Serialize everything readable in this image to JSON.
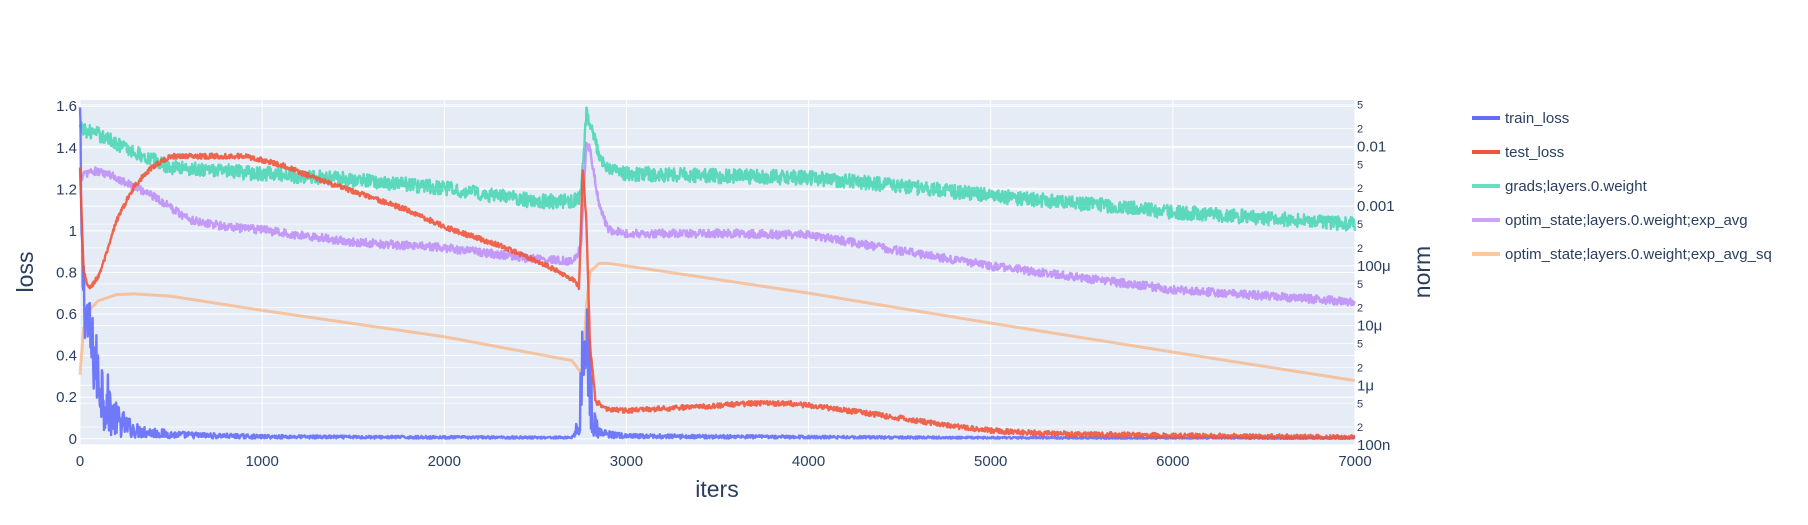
{
  "chart_data": {
    "type": "line",
    "xlabel": "iters",
    "ylabel_left": "loss",
    "ylabel_right": "norm",
    "x_ticks": [
      0,
      1000,
      2000,
      3000,
      4000,
      5000,
      6000,
      7000
    ],
    "x_tick_labels": [
      "0",
      "1000",
      "2000",
      "3000",
      "4000",
      "5000",
      "6000",
      "7000"
    ],
    "xlim": [
      0,
      7000
    ],
    "y_left_ticks": [
      0,
      0.2,
      0.4,
      0.6,
      0.8,
      1,
      1.2,
      1.4,
      1.6
    ],
    "y_left_tick_labels": [
      "0",
      "0.2",
      "0.4",
      "0.6",
      "0.8",
      "1",
      "1.2",
      "1.4",
      "1.6"
    ],
    "ylim_left": [
      -0.03,
      1.63
    ],
    "y_right_scale": "log",
    "y_right_major_labels": [
      {
        "value": 1e-07,
        "label": "100n"
      },
      {
        "value": 1e-06,
        "label": "1μ"
      },
      {
        "value": 1e-05,
        "label": "10μ"
      },
      {
        "value": 0.0001,
        "label": "100μ"
      },
      {
        "value": 0.001,
        "label": "0.001"
      },
      {
        "value": 0.01,
        "label": "0.01"
      }
    ],
    "y_right_minor_labels": [
      "2",
      "5"
    ],
    "ylim_right": [
      1e-07,
      0.06
    ],
    "grid": true,
    "legend_position": "right",
    "series": [
      {
        "name": "train_loss",
        "axis": "left",
        "color": "#636efa",
        "noise": 0.03,
        "x": [
          0,
          10,
          30,
          60,
          100,
          150,
          200,
          300,
          400,
          500,
          700,
          1000,
          1500,
          2000,
          2500,
          2700,
          2740,
          2760,
          2780,
          2800,
          2820,
          2850,
          2900,
          3000,
          4000,
          5000,
          6000,
          7000
        ],
        "y": [
          1.55,
          0.85,
          0.62,
          0.45,
          0.3,
          0.17,
          0.09,
          0.04,
          0.03,
          0.02,
          0.015,
          0.01,
          0.008,
          0.007,
          0.006,
          0.006,
          0.06,
          0.4,
          0.5,
          0.25,
          0.08,
          0.03,
          0.02,
          0.012,
          0.008,
          0.005,
          0.004,
          0.004
        ]
      },
      {
        "name": "test_loss",
        "axis": "left",
        "color": "#ef553b",
        "noise": 0.012,
        "x": [
          0,
          20,
          50,
          100,
          150,
          200,
          300,
          400,
          500,
          700,
          900,
          1100,
          1300,
          1500,
          1800,
          2000,
          2300,
          2500,
          2700,
          2740,
          2760,
          2780,
          2800,
          2830,
          2900,
          3000,
          3300,
          3500,
          3700,
          3900,
          4100,
          4500,
          4800,
          5000,
          5300,
          6000,
          6500,
          7000
        ],
        "y": [
          1.3,
          0.8,
          0.72,
          0.78,
          0.9,
          1.05,
          1.22,
          1.31,
          1.36,
          1.36,
          1.36,
          1.32,
          1.25,
          1.19,
          1.1,
          1.02,
          0.93,
          0.86,
          0.77,
          0.73,
          1.3,
          1.05,
          0.45,
          0.18,
          0.14,
          0.135,
          0.15,
          0.16,
          0.17,
          0.17,
          0.15,
          0.1,
          0.06,
          0.04,
          0.025,
          0.015,
          0.01,
          0.008
        ]
      },
      {
        "name": "grads;layers.0.weight",
        "axis": "right",
        "color": "#00cc96",
        "noise_log": 0.12,
        "x": [
          0,
          100,
          300,
          500,
          1000,
          1500,
          2000,
          2500,
          2700,
          2750,
          2780,
          2800,
          2850,
          2900,
          3000,
          3500,
          4000,
          4500,
          5000,
          6000,
          7000
        ],
        "y": [
          0.02,
          0.016,
          0.008,
          0.0045,
          0.0035,
          0.0028,
          0.002,
          0.0012,
          0.0012,
          0.0015,
          0.035,
          0.025,
          0.007,
          0.0045,
          0.0035,
          0.0032,
          0.003,
          0.0022,
          0.0015,
          0.0008,
          0.0005
        ]
      },
      {
        "name": "optim_state;layers.0.weight;exp_avg",
        "axis": "right",
        "color": "#ab63fa",
        "noise_log": 0.07,
        "x": [
          0,
          50,
          100,
          200,
          400,
          600,
          800,
          1000,
          1500,
          2000,
          2500,
          2700,
          2750,
          2780,
          2800,
          2850,
          2900,
          3000,
          3500,
          4000,
          4500,
          5000,
          6000,
          7000
        ],
        "y": [
          0.003,
          0.0038,
          0.0038,
          0.003,
          0.0015,
          0.0006,
          0.00045,
          0.0004,
          0.00025,
          0.0002,
          0.00013,
          0.00012,
          0.0002,
          0.012,
          0.009,
          0.001,
          0.0004,
          0.00035,
          0.00035,
          0.00033,
          0.00018,
          0.0001,
          4e-05,
          2.5e-05
        ]
      },
      {
        "name": "optim_state;layers.0.weight;exp_avg_sq",
        "axis": "right",
        "color": "#ffa15a",
        "noise_log": 0,
        "x": [
          0,
          20,
          50,
          100,
          200,
          300,
          500,
          1000,
          2000,
          2700,
          2760,
          2780,
          2800,
          2850,
          2900,
          3000,
          4000,
          5000,
          6000,
          7000
        ],
        "y": [
          1.5e-06,
          9e-06,
          1.8e-05,
          2.6e-05,
          3.3e-05,
          3.4e-05,
          3.1e-05,
          1.8e-05,
          6.5e-06,
          2.6e-06,
          1.5e-06,
          2e-05,
          8e-05,
          0.00011,
          0.00011,
          0.0001,
          3.5e-05,
          1.1e-05,
          3.6e-06,
          1.2e-06
        ]
      }
    ]
  }
}
